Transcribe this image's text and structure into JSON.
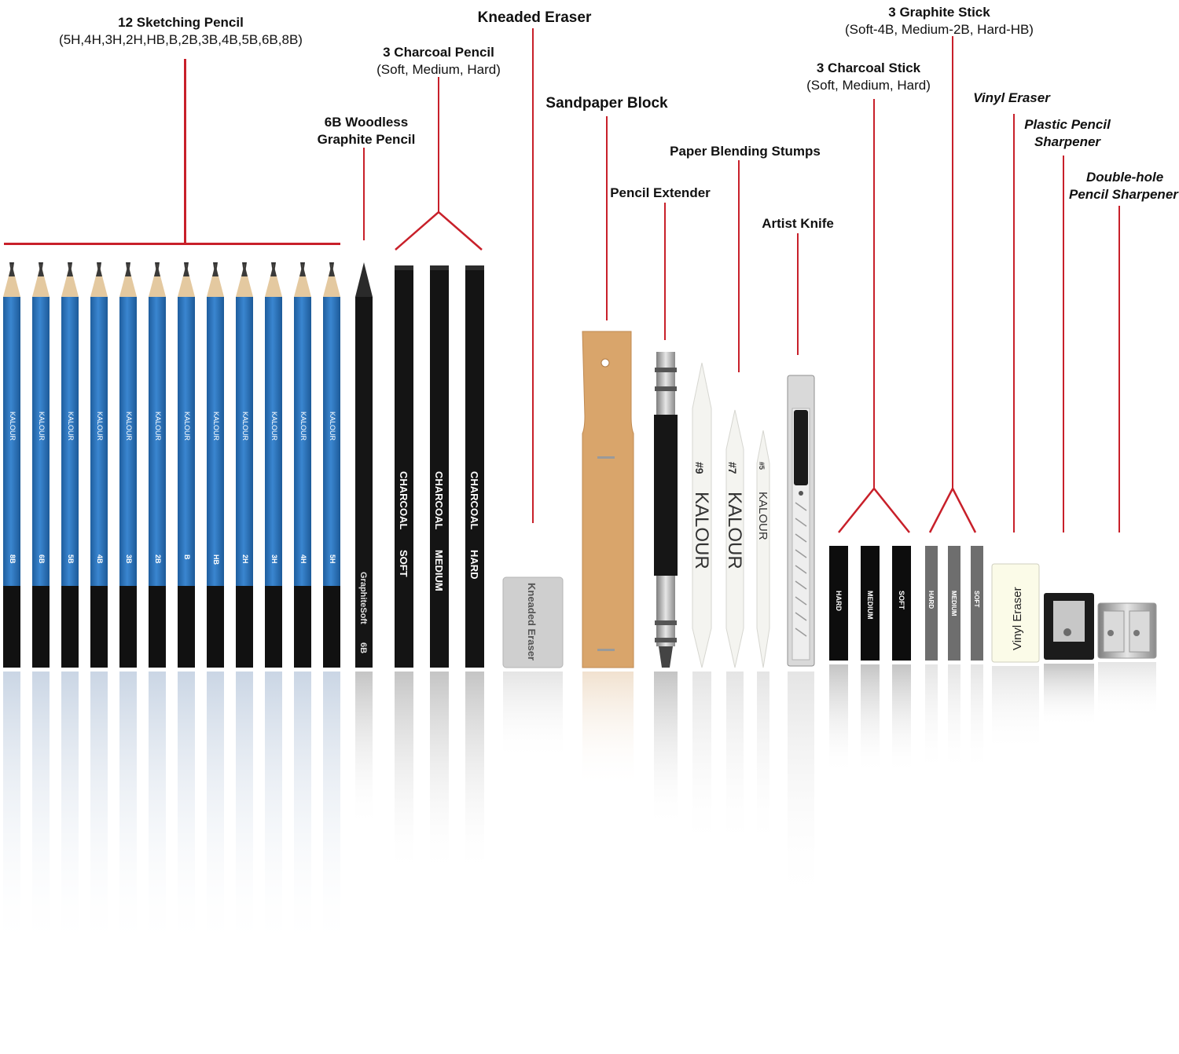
{
  "labels": {
    "sketching": {
      "title": "12 Sketching Pencil",
      "sub": "(5H,4H,3H,2H,HB,B,2B,3B,4B,5B,6B,8B)"
    },
    "woodless": {
      "line1": "6B Woodless",
      "line2": "Graphite Pencil"
    },
    "charcoal_pencil": {
      "title": "3 Charcoal Pencil",
      "sub": "(Soft, Medium, Hard)"
    },
    "kneaded": {
      "title": "Kneaded Eraser"
    },
    "sandpaper": {
      "title": "Sandpaper Block"
    },
    "extender": {
      "title": "Pencil Extender"
    },
    "stumps": {
      "title": "Paper Blending Stumps"
    },
    "knife": {
      "title": "Artist Knife"
    },
    "charcoal_stick": {
      "title": "3 Charcoal Stick",
      "sub": "(Soft, Medium, Hard)"
    },
    "graphite_stick": {
      "title": "3 Graphite Stick",
      "sub": "(Soft-4B, Medium-2B, Hard-HB)"
    },
    "vinyl": {
      "title": "Vinyl Eraser"
    },
    "plastic_sharpener": {
      "line1": "Plastic Pencil",
      "line2": "Sharpener"
    },
    "double_sharpener": {
      "line1": "Double-hole",
      "line2": "Pencil Sharpener"
    }
  },
  "items": {
    "sketch_pencil_brand": "KALOUR",
    "sketch_pencil_grades": [
      "8B",
      "6B",
      "5B",
      "4B",
      "3B",
      "2B",
      "B",
      "HB",
      "2H",
      "3H",
      "4H",
      "5H"
    ],
    "woodless_text": "GraphiteSoft",
    "woodless_grade": "6B",
    "charcoal_pencils": [
      {
        "name": "CHARCOAL",
        "grade": "SOFT"
      },
      {
        "name": "CHARCOAL",
        "grade": "MEDIUM"
      },
      {
        "name": "CHARCOAL",
        "grade": "HARD"
      }
    ],
    "kneaded_text": "Kneaded Eraser",
    "stump_brand": "KALOUR",
    "stump_sizes": [
      "#9",
      "#7",
      "#5"
    ],
    "charcoal_sticks": [
      "HARD",
      "MEDIUM",
      "SOFT"
    ],
    "graphite_sticks": [
      "HARD",
      "MEDIUM",
      "SOFT"
    ],
    "vinyl_text": "Vinyl Eraser"
  },
  "colors": {
    "leader_line": "#c8202a",
    "pencil_blue": "#2f78c4",
    "pencil_black": "#111111",
    "sandpaper": "#d9a56b"
  }
}
